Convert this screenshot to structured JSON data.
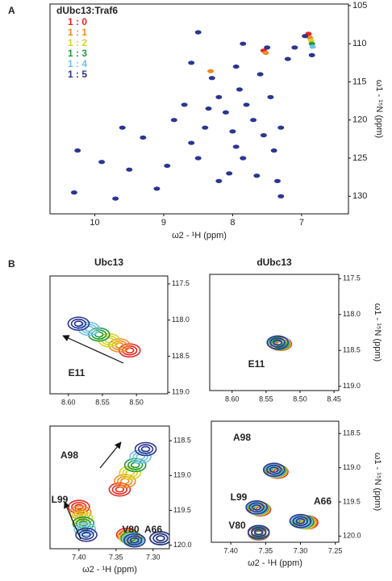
{
  "figure": {
    "panel_labels": [
      "A",
      "B"
    ],
    "column_titles": [
      "Ubc13",
      "dUbc13"
    ]
  },
  "chart_data": [
    {
      "type": "scatter",
      "legend_title": "dUbc13:Traf6",
      "xlabel": "ω2 - ¹H (ppm)",
      "ylabel": "ω1 - ¹⁵N (ppm)",
      "xlim": [
        10.65,
        6.32
      ],
      "xticks": [
        10,
        9,
        8,
        7
      ],
      "ylim": [
        104.8,
        132.3
      ],
      "yticks": [
        105,
        110,
        115,
        120,
        125,
        130
      ],
      "series": [
        {
          "name": "1 : 0",
          "color": "#e8251f",
          "x": [
            6.9,
            7.55
          ],
          "values": [
            108.7,
            110.9
          ]
        },
        {
          "name": "1 : 1",
          "color": "#f08a24",
          "x": [
            6.88,
            7.52,
            8.32
          ],
          "values": [
            109.2,
            111.2,
            113.6
          ]
        },
        {
          "name": "1 : 2",
          "color": "#d8d420",
          "x": [
            6.86
          ],
          "values": [
            109.6
          ]
        },
        {
          "name": "1 : 3",
          "color": "#1f9a3a",
          "x": [
            6.85
          ],
          "values": [
            110.0
          ]
        },
        {
          "name": "1 : 4",
          "color": "#6ec3e8",
          "x": [
            6.84
          ],
          "values": [
            110.4
          ]
        },
        {
          "name": "1 : 5",
          "color": "#2b3590",
          "x": [
            10.25,
            10.3,
            9.7,
            9.9,
            9.5,
            9.3,
            9.6,
            9.1,
            8.95,
            8.85,
            8.7,
            8.6,
            8.5,
            8.4,
            8.35,
            8.3,
            8.2,
            8.1,
            8.0,
            7.95,
            7.9,
            7.85,
            7.8,
            7.7,
            7.6,
            7.55,
            7.5,
            7.45,
            7.4,
            7.3,
            7.2,
            7.1,
            6.95,
            6.85,
            7.85,
            8.5,
            7.95,
            8.6,
            7.65,
            8.2,
            7.35,
            8.05,
            7.3
          ],
          "values": [
            124,
            129.5,
            130.3,
            125.5,
            126.5,
            122.3,
            121,
            129,
            126,
            120,
            118,
            123,
            125,
            121,
            118.5,
            114.5,
            117,
            119,
            121.5,
            123.5,
            116,
            125,
            118,
            120,
            114,
            122,
            110.5,
            117,
            124,
            121,
            112,
            110.5,
            109,
            111.5,
            110,
            108.5,
            113,
            112.5,
            127.3,
            128,
            128,
            127,
            130
          ]
        }
      ]
    },
    {
      "type": "contour",
      "xlim": [
        8.627,
        8.454
      ],
      "xticks": [
        {
          "value": 8.6,
          "label": "8.60"
        },
        8.55,
        {
          "value": 8.5,
          "label": "8.50"
        }
      ],
      "ylim": [
        117.39,
        119.02
      ],
      "yticks": [
        117.5,
        {
          "value": 118,
          "label": "118.0"
        },
        118.5,
        {
          "value": 119,
          "label": "119.0"
        }
      ],
      "annotations": [
        "E11"
      ],
      "series": [
        {
          "name": "1 : 0",
          "color": "#e8251f",
          "x": [
            8.51
          ],
          "values": [
            118.42
          ]
        },
        {
          "name": "1 : 1",
          "color": "#f08a24",
          "x": [
            8.525
          ],
          "values": [
            118.35
          ]
        },
        {
          "name": "1 : 2",
          "color": "#d8d420",
          "x": [
            8.54
          ],
          "values": [
            118.28
          ]
        },
        {
          "name": "1 : 3",
          "color": "#1f9a3a",
          "x": [
            8.555
          ],
          "values": [
            118.2
          ]
        },
        {
          "name": "1 : 4",
          "color": "#6ec3e8",
          "x": [
            8.57
          ],
          "values": [
            118.12
          ]
        },
        {
          "name": "1 : 5",
          "color": "#2b3590",
          "x": [
            8.585
          ],
          "values": [
            118.05
          ]
        }
      ]
    },
    {
      "type": "contour",
      "ylabel": "ω1 - ¹⁵N (ppm)",
      "xlim": [
        8.633,
        8.443
      ],
      "xticks": [
        {
          "value": 8.6,
          "label": "8.60"
        },
        8.55,
        {
          "value": 8.5,
          "label": "8.50"
        },
        8.45
      ],
      "ylim": [
        117.44,
        119.06
      ],
      "yticks": [
        117.5,
        {
          "value": 118,
          "label": "118.0"
        },
        118.5,
        {
          "value": 119,
          "label": "119.0"
        }
      ],
      "annotations": [
        "E11"
      ],
      "series": [
        {
          "name": "1 : 0",
          "color": "#e8251f",
          "x": [
            8.528
          ],
          "values": [
            118.41
          ]
        },
        {
          "name": "1 : 1",
          "color": "#f08a24",
          "x": [
            8.529
          ],
          "values": [
            118.41
          ]
        },
        {
          "name": "1 : 2",
          "color": "#d8d420",
          "x": [
            8.53
          ],
          "values": [
            118.4
          ]
        },
        {
          "name": "1 : 3",
          "color": "#1f9a3a",
          "x": [
            8.531
          ],
          "values": [
            118.4
          ]
        },
        {
          "name": "1 : 4",
          "color": "#6ec3e8",
          "x": [
            8.532
          ],
          "values": [
            118.39
          ]
        },
        {
          "name": "1 : 5",
          "color": "#2b3590",
          "x": [
            8.533
          ],
          "values": [
            118.39
          ]
        }
      ]
    },
    {
      "type": "contour",
      "xlabel": "ω2 - ¹H (ppm)",
      "xlim": [
        7.439,
        7.278
      ],
      "xticks": [
        {
          "value": 7.4,
          "label": "7.40"
        },
        7.35,
        {
          "value": 7.3,
          "label": "7.30"
        }
      ],
      "ylim": [
        118.29,
        120.05
      ],
      "yticks": [
        118.5,
        {
          "value": 119,
          "label": "119.0"
        },
        119.5,
        {
          "value": 120,
          "label": "120.0"
        }
      ],
      "annotations": [
        "A98",
        "L99",
        "V80",
        "A66"
      ],
      "series": [
        {
          "name": "1 : 0",
          "color": "#e8251f",
          "x": [
            7.345,
            7.4,
            7.335,
            7.29
          ],
          "values": [
            119.2,
            119.45,
            119.85,
            119.9
          ]
        },
        {
          "name": "1 : 1",
          "color": "#f08a24",
          "x": [
            7.338,
            7.398,
            7.333,
            7.29
          ],
          "values": [
            119.08,
            119.53,
            119.87,
            119.9
          ]
        },
        {
          "name": "1 : 2",
          "color": "#d8d420",
          "x": [
            7.331,
            7.396,
            7.331,
            7.29
          ],
          "values": [
            118.96,
            119.61,
            119.89,
            119.9
          ]
        },
        {
          "name": "1 : 3",
          "color": "#1f9a3a",
          "x": [
            7.324,
            7.394,
            7.329,
            7.29
          ],
          "values": [
            118.85,
            119.69,
            119.9,
            119.9
          ]
        },
        {
          "name": "1 : 4",
          "color": "#6ec3e8",
          "x": [
            7.317,
            7.392,
            7.327,
            7.29
          ],
          "values": [
            118.73,
            119.77,
            119.92,
            119.9
          ]
        },
        {
          "name": "1 : 5",
          "color": "#2b3590",
          "x": [
            7.31,
            7.39,
            7.325,
            7.29
          ],
          "values": [
            118.62,
            119.85,
            119.93,
            119.9
          ]
        }
      ]
    },
    {
      "type": "contour",
      "xlabel": "ω2 - ¹H (ppm)",
      "ylabel": "ω1 - ¹⁵N (ppm)",
      "xlim": [
        7.428,
        7.245
      ],
      "xticks": [
        {
          "value": 7.4,
          "label": "7.40"
        },
        7.35,
        {
          "value": 7.3,
          "label": "7.30"
        },
        7.25
      ],
      "ylim": [
        118.32,
        120.09
      ],
      "yticks": [
        118.5,
        {
          "value": 119,
          "label": "119.0"
        },
        119.5,
        {
          "value": 120,
          "label": "120.0"
        }
      ],
      "annotations": [
        "A98",
        "L99",
        "A66",
        "V80"
      ],
      "series": [
        {
          "name": "1 : 0",
          "color": "#e8251f",
          "x": [
            7.333,
            7.358,
            7.29,
            7.36
          ],
          "values": [
            119.06,
            119.61,
            119.8,
            119.96
          ]
        },
        {
          "name": "1 : 1",
          "color": "#f08a24",
          "x": [
            7.334,
            7.359,
            7.292,
            7.36
          ],
          "values": [
            119.05,
            119.6,
            119.8,
            119.95
          ]
        },
        {
          "name": "1 : 2",
          "color": "#d8d420",
          "x": [
            7.335,
            7.36,
            7.294,
            7.36
          ],
          "values": [
            119.05,
            119.6,
            119.8,
            119.95
          ]
        },
        {
          "name": "1 : 3",
          "color": "#1f9a3a",
          "x": [
            7.336,
            7.361,
            7.296,
            7.36
          ],
          "values": [
            119.04,
            119.59,
            119.79,
            119.95
          ]
        },
        {
          "name": "1 : 4",
          "color": "#6ec3e8",
          "x": [
            7.337,
            7.362,
            7.298,
            7.36
          ],
          "values": [
            119.04,
            119.59,
            119.79,
            119.94
          ]
        },
        {
          "name": "1 : 5",
          "color": "#2b3590",
          "x": [
            7.338,
            7.363,
            7.3,
            7.36
          ],
          "values": [
            119.03,
            119.58,
            119.78,
            119.94
          ]
        }
      ]
    }
  ]
}
